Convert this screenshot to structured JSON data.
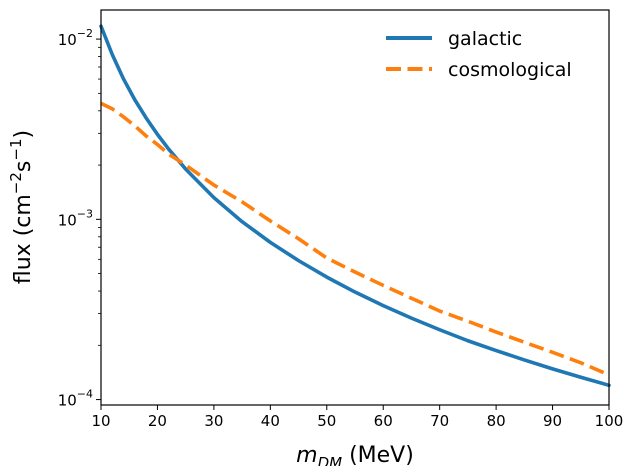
{
  "chart_data": {
    "type": "line",
    "xlabel_main": "m",
    "xlabel_sub": "DM",
    "xlabel_unit": " (MeV)",
    "ylabel_main": "flux (cm",
    "ylabel_exp1": "−2",
    "ylabel_mid": "s",
    "ylabel_exp2": "−1",
    "ylabel_end": ")",
    "xlim": [
      10,
      100
    ],
    "ylim": [
      9.33e-05,
      0.0145
    ],
    "y_scale": "log",
    "x_ticks": [
      10,
      20,
      30,
      40,
      50,
      60,
      70,
      80,
      90,
      100
    ],
    "x_tick_labels": [
      "10",
      "20",
      "30",
      "40",
      "50",
      "60",
      "70",
      "80",
      "90",
      "100"
    ],
    "y_ticks": [
      {
        "value": 0.01,
        "base": "10",
        "exp": "−2"
      },
      {
        "value": 0.001,
        "base": "10",
        "exp": "−3"
      },
      {
        "value": 0.0001,
        "base": "10",
        "exp": "−4"
      }
    ],
    "legend_position": "top-right",
    "series": [
      {
        "name": "galactic",
        "color": "#1f77b4",
        "dash": "solid",
        "x": [
          10,
          12,
          14,
          16,
          18,
          20,
          22,
          25,
          30,
          35,
          40,
          45,
          50,
          55,
          60,
          65,
          70,
          75,
          80,
          85,
          90,
          95,
          100
        ],
        "y": [
          0.0118,
          0.0082,
          0.006,
          0.0046,
          0.00365,
          0.00296,
          0.00245,
          0.0019,
          0.00132,
          0.00097,
          0.000745,
          0.00059,
          0.000478,
          0.000395,
          0.000332,
          0.000283,
          0.000244,
          0.000212,
          0.000187,
          0.000166,
          0.000148,
          0.000133,
          0.00012
        ]
      },
      {
        "name": "cosmological",
        "color": "#ff7f0e",
        "dash": "dashed",
        "x": [
          10,
          12,
          14,
          16,
          18,
          20,
          22,
          25,
          30,
          35,
          40,
          45,
          50,
          55,
          60,
          65,
          70,
          75,
          80,
          85,
          90,
          95,
          100
        ],
        "y": [
          0.0044,
          0.0041,
          0.0037,
          0.0033,
          0.0029,
          0.0026,
          0.0023,
          0.002,
          0.00155,
          0.00125,
          0.00098,
          0.00078,
          0.00061,
          0.00051,
          0.00043,
          0.000365,
          0.00031,
          0.000272,
          0.000237,
          0.000208,
          0.000183,
          0.00016,
          0.000137
        ]
      }
    ]
  }
}
